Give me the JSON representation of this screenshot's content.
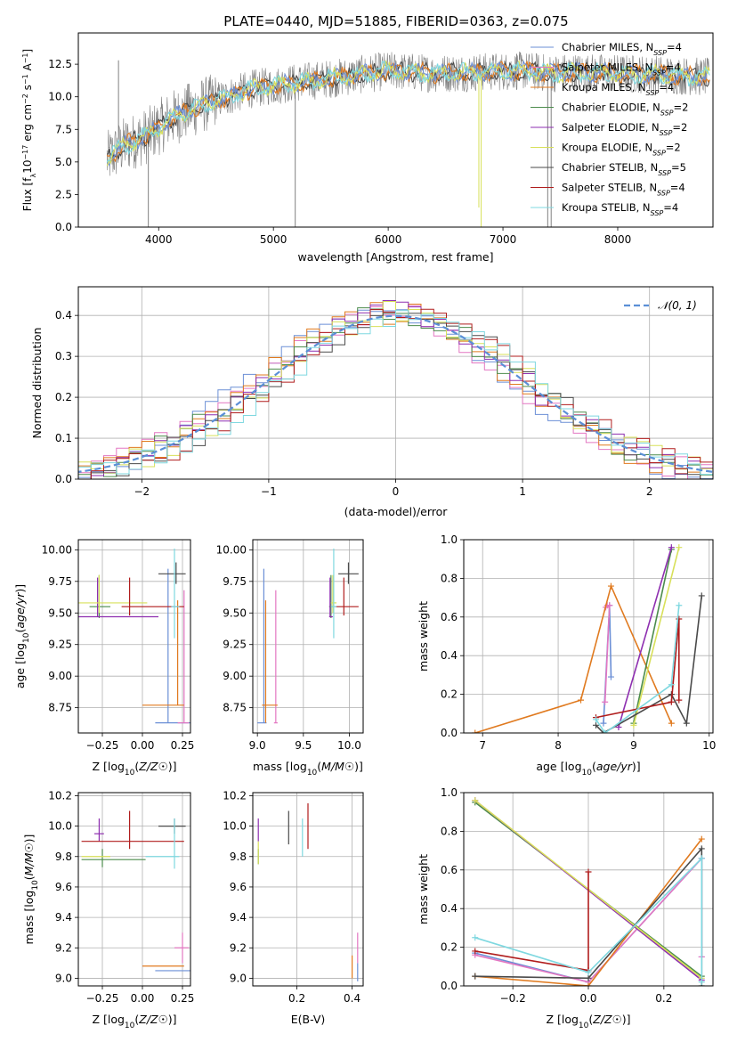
{
  "colors": {
    "c0": "#6b8fd6",
    "c1": "#e377c2",
    "c2": "#e07a1f",
    "c3": "#4c8c4c",
    "c4": "#8e2fb0",
    "c5": "#d8e05a",
    "c6": "#4a4a4a",
    "c7": "#b01d1d",
    "c8": "#7fd8e0",
    "gauss": "#5b8fd6"
  },
  "chart_data": [
    {
      "id": "spectrum",
      "type": "line",
      "title": "PLATE=0440, MJD=51885, FIBERID=0363, z=0.075",
      "xlabel": "wavelength [Angstrom, rest frame]",
      "ylabel": "Flux [f$_\\lambda$10$^{-17}$ erg cm$^{-2}$ s$^{-1}$ A$^{-1}$]",
      "ylabel_parts": [
        "Flux [f",
        "λ",
        "10",
        "−17",
        " erg cm",
        "−2",
        " s",
        "−1",
        " A",
        "−1",
        "]"
      ],
      "xlim": [
        3300,
        8830
      ],
      "ylim": [
        0,
        14.9
      ],
      "xticks": [
        4000,
        5000,
        6000,
        7000,
        8000
      ],
      "yticks": [
        0.0,
        2.5,
        5.0,
        7.5,
        10.0,
        12.5
      ],
      "grid": false,
      "legend_loc": "upper right",
      "legend": [
        {
          "label": "Chabrier MILES, N",
          "n": "4",
          "color": "c0"
        },
        {
          "label": "Salpeter MILES, N",
          "n": "4",
          "color": "c1"
        },
        {
          "label": "Kroupa MILES, N",
          "n": "4",
          "color": "c2"
        },
        {
          "label": "Chabrier ELODIE, N",
          "n": "2",
          "color": "c3"
        },
        {
          "label": "Salpeter ELODIE, N",
          "n": "2",
          "color": "c4"
        },
        {
          "label": "Kroupa ELODIE, N",
          "n": "2",
          "color": "c5"
        },
        {
          "label": "Chabrier STELIB, N",
          "n": "5",
          "color": "c6"
        },
        {
          "label": "Salpeter STELIB, N",
          "n": "4",
          "color": "c7"
        },
        {
          "label": "Kroupa STELIB, N",
          "n": "4",
          "color": "c8"
        }
      ],
      "legend_sub": "SSP",
      "continuum": [
        [
          3550,
          5.2
        ],
        [
          3700,
          6.3
        ],
        [
          3900,
          7.0
        ],
        [
          4100,
          8.3
        ],
        [
          4400,
          9.4
        ],
        [
          4800,
          10.6
        ],
        [
          5200,
          11.1
        ],
        [
          5600,
          11.5
        ],
        [
          6000,
          12.0
        ],
        [
          6400,
          11.8
        ],
        [
          6800,
          11.9
        ],
        [
          7200,
          12.0
        ],
        [
          7400,
          11.8
        ],
        [
          7600,
          11.9
        ],
        [
          8000,
          11.8
        ],
        [
          8400,
          11.7
        ],
        [
          8800,
          11.5
        ]
      ],
      "spikes": [
        [
          3650,
          12.8
        ],
        [
          3910,
          0.0
        ],
        [
          4260,
          11.0
        ],
        [
          5190,
          0.0
        ],
        [
          6300,
          11.0
        ],
        [
          6810,
          0.0
        ],
        [
          6790,
          1.5
        ],
        [
          7390,
          0.0
        ],
        [
          7420,
          0.0
        ],
        [
          7120,
          13.3
        ]
      ]
    },
    {
      "id": "residuals",
      "type": "histogram",
      "xlabel": "(data-model)/error",
      "ylabel": "Normed distribution",
      "xlim": [
        -2.5,
        2.5
      ],
      "ylim": [
        0,
        0.47
      ],
      "xticks": [
        -2,
        -1,
        0,
        1,
        2
      ],
      "yticks": [
        0.0,
        0.1,
        0.2,
        0.3,
        0.4
      ],
      "grid": true,
      "legend_loc": "upper right",
      "gauss_label": "𝒩(0, 1)",
      "bin_width": 0.1
    },
    {
      "id": "age_vs_Z",
      "type": "errorbar",
      "xlabel": "Z [log10(Z/Z☉)]",
      "ylabel": "age  [log10(age/yr)]",
      "xlim": [
        -0.4,
        0.3
      ],
      "ylim": [
        8.55,
        10.08
      ],
      "xticks": [
        -0.25,
        0.0,
        0.25
      ],
      "yticks": [
        8.75,
        9.0,
        9.25,
        9.5,
        9.75,
        10.0
      ],
      "grid": true,
      "points": [
        {
          "c": "c0",
          "x": 0.16,
          "y": 8.63,
          "xe": [
            0.08,
            0.3
          ],
          "ye": [
            8.63,
            9.85
          ]
        },
        {
          "c": "c1",
          "x": 0.26,
          "y": 8.63,
          "xe": [
            0.22,
            0.29
          ],
          "ye": [
            8.63,
            9.68
          ]
        },
        {
          "c": "c2",
          "x": 0.22,
          "y": 8.77,
          "xe": [
            0.0,
            0.26
          ],
          "ye": [
            8.77,
            9.6
          ]
        },
        {
          "c": "c3",
          "x": -0.27,
          "y": 9.55,
          "xe": [
            -0.33,
            -0.2
          ],
          "ye": [
            9.46,
            9.8
          ]
        },
        {
          "c": "c4",
          "x": -0.28,
          "y": 9.47,
          "xe": [
            -0.4,
            0.1
          ],
          "ye": [
            9.47,
            9.78
          ]
        },
        {
          "c": "c5",
          "x": -0.27,
          "y": 9.58,
          "xe": [
            -0.4,
            0.03
          ],
          "ye": [
            9.5,
            9.8
          ]
        },
        {
          "c": "c6",
          "x": 0.21,
          "y": 9.81,
          "xe": [
            0.1,
            0.27
          ],
          "ye": [
            9.73,
            9.9
          ]
        },
        {
          "c": "c7",
          "x": -0.08,
          "y": 9.55,
          "xe": [
            -0.13,
            0.26
          ],
          "ye": [
            9.48,
            9.78
          ]
        },
        {
          "c": "c8",
          "x": 0.2,
          "y": 9.55,
          "xe": [
            0.18,
            0.23
          ],
          "ye": [
            9.3,
            10.01
          ]
        }
      ]
    },
    {
      "id": "age_vs_mass",
      "type": "errorbar",
      "xlabel": "mass [log10(M/M☉)]",
      "xlim": [
        8.95,
        10.15
      ],
      "ylim": [
        8.55,
        10.08
      ],
      "xticks": [
        9.0,
        9.5,
        10.0
      ],
      "yticks": [
        8.75,
        9.0,
        9.25,
        9.5,
        9.75,
        10.0
      ],
      "grid": true,
      "points": [
        {
          "c": "c0",
          "x": 9.07,
          "y": 8.63,
          "xe": [
            9.0,
            9.1
          ],
          "ye": [
            8.63,
            9.85
          ]
        },
        {
          "c": "c1",
          "x": 9.2,
          "y": 8.63,
          "xe": [
            9.18,
            9.22
          ],
          "ye": [
            8.63,
            9.68
          ]
        },
        {
          "c": "c2",
          "x": 9.09,
          "y": 8.77,
          "xe": [
            9.05,
            9.22
          ],
          "ye": [
            8.63,
            9.6
          ]
        },
        {
          "c": "c3",
          "x": 9.8,
          "y": 9.55,
          "xe": [
            9.78,
            9.82
          ],
          "ye": [
            9.46,
            9.8
          ]
        },
        {
          "c": "c4",
          "x": 9.79,
          "y": 9.47,
          "xe": [
            9.78,
            9.82
          ],
          "ye": [
            9.47,
            9.78
          ]
        },
        {
          "c": "c5",
          "x": 9.82,
          "y": 9.58,
          "xe": [
            9.8,
            9.86
          ],
          "ye": [
            9.5,
            9.8
          ]
        },
        {
          "c": "c6",
          "x": 9.99,
          "y": 9.81,
          "xe": [
            9.88,
            10.1
          ],
          "ye": [
            9.73,
            9.9
          ]
        },
        {
          "c": "c7",
          "x": 9.94,
          "y": 9.55,
          "xe": [
            9.84,
            10.1
          ],
          "ye": [
            9.48,
            9.78
          ]
        },
        {
          "c": "c8",
          "x": 9.83,
          "y": 9.55,
          "xe": [
            9.8,
            9.86
          ],
          "ye": [
            9.3,
            10.01
          ]
        }
      ]
    },
    {
      "id": "weight_vs_age",
      "type": "line",
      "xlabel": "age  [log10(age/yr)]",
      "ylabel": "mass weight",
      "xlim": [
        6.75,
        10.05
      ],
      "ylim": [
        0,
        1
      ],
      "xticks": [
        7,
        8,
        9,
        10
      ],
      "yticks": [
        0.0,
        0.2,
        0.4,
        0.6,
        0.8,
        1.0
      ],
      "grid": true,
      "series": [
        {
          "c": "c0",
          "pts": [
            [
              8.6,
              0.05
            ],
            [
              8.68,
              0.66
            ],
            [
              8.7,
              0.29
            ]
          ]
        },
        {
          "c": "c1",
          "pts": [
            [
              8.62,
              0.16
            ],
            [
              8.68,
              0.66
            ],
            [
              8.63,
              0.65
            ],
            [
              8.65,
              0.66
            ]
          ]
        },
        {
          "c": "c2",
          "pts": [
            [
              6.9,
              0.0
            ],
            [
              8.3,
              0.17
            ],
            [
              8.7,
              0.76
            ],
            [
              9.5,
              0.05
            ]
          ]
        },
        {
          "c": "c3",
          "pts": [
            [
              9.0,
              0.05
            ],
            [
              9.5,
              0.95
            ]
          ]
        },
        {
          "c": "c4",
          "pts": [
            [
              8.8,
              0.03
            ],
            [
              9.5,
              0.96
            ]
          ]
        },
        {
          "c": "c5",
          "pts": [
            [
              9.0,
              0.04
            ],
            [
              9.6,
              0.96
            ]
          ]
        },
        {
          "c": "c6",
          "pts": [
            [
              8.5,
              0.04
            ],
            [
              8.6,
              0.0
            ],
            [
              9.5,
              0.2
            ],
            [
              9.7,
              0.05
            ],
            [
              9.9,
              0.71
            ]
          ]
        },
        {
          "c": "c7",
          "pts": [
            [
              8.5,
              0.08
            ],
            [
              9.5,
              0.16
            ],
            [
              9.6,
              0.59
            ],
            [
              9.6,
              0.17
            ]
          ]
        },
        {
          "c": "c8",
          "pts": [
            [
              8.5,
              0.07
            ],
            [
              8.62,
              0.0
            ],
            [
              9.5,
              0.25
            ],
            [
              9.6,
              0.66
            ]
          ]
        }
      ]
    },
    {
      "id": "mass_vs_Z",
      "type": "errorbar",
      "xlabel": "Z [log10(Z/Z☉)]",
      "ylabel": "mass [log10(M/M☉)]",
      "xlim": [
        -0.4,
        0.3
      ],
      "ylim": [
        8.95,
        10.22
      ],
      "xticks": [
        -0.25,
        0.0,
        0.25
      ],
      "yticks": [
        9.0,
        9.2,
        9.4,
        9.6,
        9.8,
        10.0,
        10.2
      ],
      "grid": true,
      "points": [
        {
          "c": "c0",
          "x": 0.16,
          "y": 9.05,
          "xe": [
            0.08,
            0.3
          ],
          "ye": [
            9.05,
            9.05
          ]
        },
        {
          "c": "c1",
          "x": 0.25,
          "y": 9.2,
          "xe": [
            0.2,
            0.29
          ],
          "ye": [
            9.1,
            9.3
          ]
        },
        {
          "c": "c2",
          "x": 0.1,
          "y": 9.08,
          "xe": [
            0.0,
            0.26
          ],
          "ye": [
            9.08,
            9.08
          ]
        },
        {
          "c": "c3",
          "x": -0.25,
          "y": 9.78,
          "xe": [
            -0.38,
            0.02
          ],
          "ye": [
            9.73,
            9.85
          ]
        },
        {
          "c": "c4",
          "x": -0.27,
          "y": 9.95,
          "xe": [
            -0.3,
            -0.24
          ],
          "ye": [
            9.9,
            10.05
          ]
        },
        {
          "c": "c5",
          "x": -0.27,
          "y": 9.8,
          "xe": [
            -0.38,
            -0.2
          ],
          "ye": [
            9.8,
            9.8
          ]
        },
        {
          "c": "c6",
          "x": 0.2,
          "y": 10.0,
          "xe": [
            0.1,
            0.27
          ],
          "ye": [
            9.95,
            10.05
          ]
        },
        {
          "c": "c7",
          "x": -0.08,
          "y": 9.9,
          "xe": [
            -0.38,
            0.26
          ],
          "ye": [
            9.85,
            10.1
          ]
        },
        {
          "c": "c8",
          "x": 0.2,
          "y": 9.8,
          "xe": [
            0.02,
            0.23
          ],
          "ye": [
            9.72,
            10.05
          ]
        }
      ]
    },
    {
      "id": "mass_vs_EBV",
      "type": "errorbar",
      "xlabel": "E(B-V)",
      "xlim": [
        0.04,
        0.44
      ],
      "ylim": [
        8.95,
        10.22
      ],
      "xticks": [
        0.2,
        0.4
      ],
      "yticks": [
        9.0,
        9.2,
        9.4,
        9.6,
        9.8,
        10.0,
        10.2
      ],
      "grid": true,
      "points": [
        {
          "c": "c0",
          "x": 0.42,
          "y": 9.05,
          "xe": [
            0.42,
            0.42
          ],
          "ye": [
            8.98,
            9.1
          ]
        },
        {
          "c": "c1",
          "x": 0.42,
          "y": 9.2,
          "xe": [
            0.42,
            0.42
          ],
          "ye": [
            9.1,
            9.3
          ]
        },
        {
          "c": "c2",
          "x": 0.4,
          "y": 9.08,
          "xe": [
            0.4,
            0.4
          ],
          "ye": [
            9.0,
            9.15
          ]
        },
        {
          "c": "c3",
          "x": 0.06,
          "y": 9.78,
          "xe": [
            0.06,
            0.06
          ],
          "ye": [
            9.75,
            9.85
          ]
        },
        {
          "c": "c4",
          "x": 0.06,
          "y": 9.95,
          "xe": [
            0.06,
            0.06
          ],
          "ye": [
            9.9,
            10.05
          ]
        },
        {
          "c": "c5",
          "x": 0.06,
          "y": 9.8,
          "xe": [
            0.06,
            0.06
          ],
          "ye": [
            9.75,
            9.9
          ]
        },
        {
          "c": "c6",
          "x": 0.17,
          "y": 10.0,
          "xe": [
            0.17,
            0.17
          ],
          "ye": [
            9.88,
            10.1
          ]
        },
        {
          "c": "c7",
          "x": 0.24,
          "y": 9.95,
          "xe": [
            0.24,
            0.24
          ],
          "ye": [
            9.85,
            10.15
          ]
        },
        {
          "c": "c8",
          "x": 0.22,
          "y": 9.95,
          "xe": [
            0.22,
            0.22
          ],
          "ye": [
            9.8,
            10.05
          ]
        }
      ]
    },
    {
      "id": "weight_vs_Z",
      "type": "line",
      "xlabel": "Z [log10(Z/Z☉)]",
      "ylabel": "mass weight",
      "xlim": [
        -0.33,
        0.33
      ],
      "ylim": [
        0,
        1
      ],
      "xticks": [
        -0.2,
        0.0,
        0.2
      ],
      "yticks": [
        0.0,
        0.2,
        0.4,
        0.6,
        0.8,
        1.0
      ],
      "grid": true,
      "series": [
        {
          "c": "c0",
          "pts": [
            [
              -0.3,
              0.17
            ],
            [
              0.0,
              0.02
            ],
            [
              0.3,
              0.66
            ],
            [
              0.3,
              0.15
            ]
          ]
        },
        {
          "c": "c1",
          "pts": [
            [
              -0.3,
              0.16
            ],
            [
              0.0,
              0.02
            ],
            [
              0.3,
              0.66
            ],
            [
              0.3,
              0.15
            ]
          ]
        },
        {
          "c": "c2",
          "pts": [
            [
              -0.3,
              0.05
            ],
            [
              0.0,
              0.0
            ],
            [
              0.3,
              0.76
            ]
          ]
        },
        {
          "c": "c3",
          "pts": [
            [
              -0.3,
              0.95
            ],
            [
              0.3,
              0.05
            ]
          ]
        },
        {
          "c": "c4",
          "pts": [
            [
              -0.3,
              0.96
            ],
            [
              0.3,
              0.03
            ]
          ]
        },
        {
          "c": "c5",
          "pts": [
            [
              -0.3,
              0.96
            ],
            [
              0.3,
              0.04
            ]
          ]
        },
        {
          "c": "c6",
          "pts": [
            [
              -0.3,
              0.05
            ],
            [
              0.0,
              0.04
            ],
            [
              0.3,
              0.71
            ],
            [
              0.3,
              0.0
            ]
          ]
        },
        {
          "c": "c7",
          "pts": [
            [
              -0.3,
              0.18
            ],
            [
              0.0,
              0.08
            ],
            [
              0.0,
              0.59
            ],
            [
              0.0,
              0.08
            ]
          ]
        },
        {
          "c": "c8",
          "pts": [
            [
              -0.3,
              0.25
            ],
            [
              0.0,
              0.07
            ],
            [
              0.3,
              0.66
            ],
            [
              0.3,
              0.02
            ]
          ]
        }
      ]
    }
  ]
}
